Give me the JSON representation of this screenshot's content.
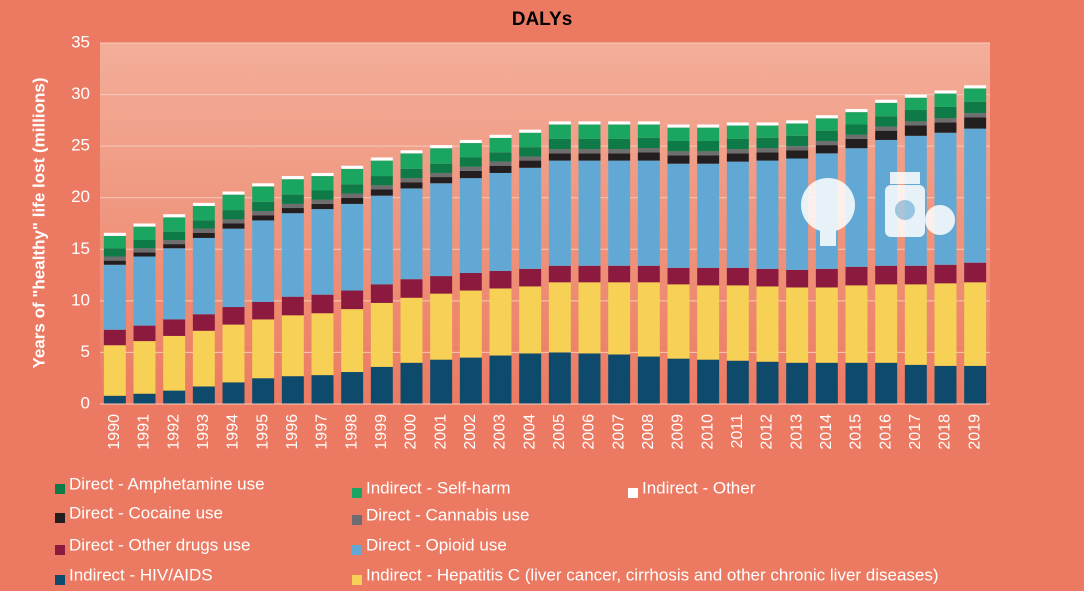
{
  "chart_data": {
    "type": "stacked_bar",
    "title": "DALYs",
    "y_label": "Years of \"healthy\" life lost (millions)",
    "categories": [
      "1990",
      "1991",
      "1992",
      "1993",
      "1994",
      "1995",
      "1996",
      "1997",
      "1998",
      "1999",
      "2000",
      "2001",
      "2002",
      "2003",
      "2004",
      "2005",
      "2006",
      "2007",
      "2008",
      "2009",
      "2010",
      "2011",
      "2012",
      "2013",
      "2014",
      "2015",
      "2016",
      "2017",
      "2018",
      "2019"
    ],
    "ylim": [
      0,
      35
    ],
    "yticks": [
      0,
      5,
      10,
      15,
      20,
      25,
      30,
      35
    ],
    "grid": true,
    "series": [
      {
        "name": "Indirect - HIV/AIDS",
        "color": "#0d4a6b",
        "values": [
          0.8,
          1.0,
          1.3,
          1.7,
          2.1,
          2.5,
          2.7,
          2.8,
          3.1,
          3.6,
          4.0,
          4.3,
          4.5,
          4.7,
          4.9,
          5.0,
          4.9,
          4.8,
          4.6,
          4.4,
          4.3,
          4.2,
          4.1,
          4.0,
          4.0,
          4.0,
          4.0,
          3.8,
          3.7,
          3.7
        ]
      },
      {
        "name": "Indirect - Hepatitis C (liver cancer, cirrhosis and other chronic liver diseases)",
        "color": "#f6d155",
        "values": [
          4.9,
          5.1,
          5.3,
          5.4,
          5.6,
          5.7,
          5.9,
          6.0,
          6.1,
          6.2,
          6.3,
          6.4,
          6.5,
          6.5,
          6.5,
          6.8,
          6.9,
          7.0,
          7.2,
          7.2,
          7.2,
          7.3,
          7.3,
          7.3,
          7.3,
          7.5,
          7.6,
          7.8,
          8.0,
          8.1
        ]
      },
      {
        "name": "Direct - Other drugs use",
        "color": "#8b1a3e",
        "values": [
          1.5,
          1.5,
          1.6,
          1.6,
          1.7,
          1.7,
          1.8,
          1.8,
          1.8,
          1.8,
          1.8,
          1.7,
          1.7,
          1.7,
          1.7,
          1.6,
          1.6,
          1.6,
          1.6,
          1.6,
          1.7,
          1.7,
          1.7,
          1.7,
          1.8,
          1.8,
          1.8,
          1.8,
          1.8,
          1.9
        ]
      },
      {
        "name": "Direct - Opioid use",
        "color": "#62a8d4",
        "values": [
          6.3,
          6.7,
          6.9,
          7.4,
          7.6,
          7.9,
          8.1,
          8.3,
          8.4,
          8.6,
          8.8,
          9.0,
          9.2,
          9.5,
          9.8,
          10.2,
          10.2,
          10.2,
          10.2,
          10.1,
          10.1,
          10.3,
          10.5,
          10.8,
          11.2,
          11.5,
          12.2,
          12.6,
          12.8,
          13.0
        ]
      },
      {
        "name": "Direct - Cocaine use",
        "color": "#231f20",
        "values": [
          0.4,
          0.4,
          0.4,
          0.5,
          0.5,
          0.5,
          0.5,
          0.5,
          0.6,
          0.6,
          0.6,
          0.6,
          0.7,
          0.7,
          0.7,
          0.7,
          0.7,
          0.7,
          0.8,
          0.8,
          0.8,
          0.8,
          0.8,
          0.8,
          0.8,
          0.9,
          0.9,
          1.0,
          1.0,
          1.1
        ]
      },
      {
        "name": "Direct - Cannabis use",
        "color": "#6d6e70",
        "values": [
          0.4,
          0.4,
          0.4,
          0.4,
          0.4,
          0.4,
          0.4,
          0.4,
          0.4,
          0.4,
          0.4,
          0.4,
          0.4,
          0.4,
          0.4,
          0.4,
          0.4,
          0.4,
          0.4,
          0.4,
          0.4,
          0.4,
          0.4,
          0.4,
          0.4,
          0.4,
          0.4,
          0.4,
          0.4,
          0.4
        ]
      },
      {
        "name": "Direct - Amphetamine use",
        "color": "#0e7a47",
        "values": [
          0.8,
          0.8,
          0.8,
          0.8,
          0.9,
          0.9,
          0.9,
          0.9,
          0.9,
          0.9,
          0.9,
          0.9,
          0.9,
          0.9,
          0.9,
          1.0,
          1.0,
          1.0,
          1.0,
          1.0,
          1.0,
          1.0,
          1.0,
          1.0,
          1.0,
          1.0,
          1.0,
          1.1,
          1.1,
          1.1
        ]
      },
      {
        "name": "Indirect - Self-harm",
        "color": "#1aa561",
        "values": [
          1.2,
          1.3,
          1.4,
          1.4,
          1.5,
          1.5,
          1.5,
          1.4,
          1.5,
          1.5,
          1.5,
          1.5,
          1.4,
          1.4,
          1.4,
          1.4,
          1.4,
          1.4,
          1.3,
          1.3,
          1.3,
          1.3,
          1.2,
          1.2,
          1.2,
          1.2,
          1.3,
          1.2,
          1.3,
          1.3
        ]
      },
      {
        "name": "Indirect - Other",
        "color": "#ffffff",
        "values": [
          0.3,
          0.3,
          0.3,
          0.3,
          0.3,
          0.3,
          0.3,
          0.3,
          0.3,
          0.3,
          0.3,
          0.3,
          0.3,
          0.3,
          0.3,
          0.3,
          0.3,
          0.3,
          0.3,
          0.3,
          0.3,
          0.3,
          0.3,
          0.3,
          0.3,
          0.3,
          0.3,
          0.3,
          0.3,
          0.3
        ]
      }
    ]
  }
}
